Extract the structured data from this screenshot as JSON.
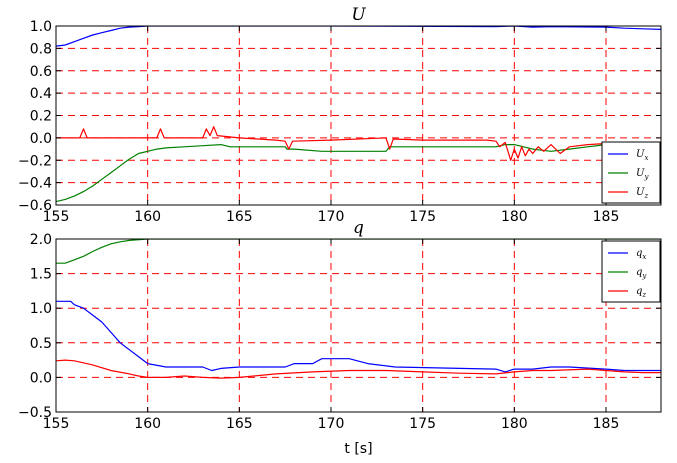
{
  "chart_data": [
    {
      "type": "line",
      "title": "U",
      "xlabel": "",
      "ylabel": "",
      "xlim": [
        155,
        188
      ],
      "ylim": [
        -0.6,
        1.0
      ],
      "xticks": [
        155,
        160,
        165,
        170,
        175,
        180,
        185
      ],
      "yticks": [
        -0.6,
        -0.4,
        -0.2,
        0.0,
        0.2,
        0.4,
        0.6,
        0.8,
        1.0
      ],
      "grid": true,
      "legend_position": "lower-right",
      "series": [
        {
          "name": "U_x",
          "label_base": "U",
          "label_sub": "x",
          "color": "#0000ff",
          "points": [
            [
              155,
              0.82
            ],
            [
              155.5,
              0.83
            ],
            [
              156,
              0.86
            ],
            [
              156.5,
              0.89
            ],
            [
              157,
              0.92
            ],
            [
              157.5,
              0.94
            ],
            [
              158,
              0.96
            ],
            [
              158.5,
              0.98
            ],
            [
              159,
              0.99
            ],
            [
              159.5,
              0.995
            ],
            [
              160,
              1.0
            ],
            [
              170,
              1.0
            ],
            [
              179,
              0.995
            ],
            [
              180,
              1.0
            ],
            [
              181,
              0.99
            ],
            [
              182,
              0.995
            ],
            [
              185,
              0.99
            ],
            [
              186,
              0.98
            ],
            [
              187,
              0.975
            ],
            [
              188,
              0.97
            ]
          ]
        },
        {
          "name": "U_y",
          "label_base": "U",
          "label_sub": "y",
          "color": "#008000",
          "points": [
            [
              155,
              -0.57
            ],
            [
              155.5,
              -0.55
            ],
            [
              156,
              -0.52
            ],
            [
              156.5,
              -0.48
            ],
            [
              157,
              -0.43
            ],
            [
              157.5,
              -0.37
            ],
            [
              158,
              -0.31
            ],
            [
              158.5,
              -0.25
            ],
            [
              159,
              -0.19
            ],
            [
              159.5,
              -0.14
            ],
            [
              160,
              -0.12
            ],
            [
              160.5,
              -0.1
            ],
            [
              161,
              -0.09
            ],
            [
              162,
              -0.08
            ],
            [
              163,
              -0.07
            ],
            [
              164,
              -0.06
            ],
            [
              164.5,
              -0.08
            ],
            [
              165,
              -0.08
            ],
            [
              167.5,
              -0.08
            ],
            [
              167.6,
              -0.1
            ],
            [
              168,
              -0.1
            ],
            [
              169.5,
              -0.12
            ],
            [
              173,
              -0.12
            ],
            [
              173.2,
              -0.08
            ],
            [
              179,
              -0.08
            ],
            [
              179.5,
              -0.06
            ],
            [
              180,
              -0.06
            ],
            [
              180.5,
              -0.08
            ],
            [
              181,
              -0.1
            ],
            [
              182,
              -0.12
            ],
            [
              183,
              -0.1
            ],
            [
              184,
              -0.08
            ],
            [
              185,
              -0.06
            ],
            [
              186,
              -0.06
            ],
            [
              187,
              -0.07
            ],
            [
              188,
              -0.07
            ]
          ]
        },
        {
          "name": "U_z",
          "label_base": "U",
          "label_sub": "z",
          "color": "#ff0000",
          "points": [
            [
              155,
              0.0
            ],
            [
              156,
              0.0
            ],
            [
              156.3,
              0.0
            ],
            [
              156.5,
              0.08
            ],
            [
              156.7,
              0.0
            ],
            [
              160.5,
              0.0
            ],
            [
              160.7,
              0.08
            ],
            [
              160.9,
              0.0
            ],
            [
              163,
              0.0
            ],
            [
              163.2,
              0.08
            ],
            [
              163.4,
              0.02
            ],
            [
              163.6,
              0.1
            ],
            [
              163.8,
              0.02
            ],
            [
              165,
              0.0
            ],
            [
              167,
              -0.02
            ],
            [
              167.5,
              -0.03
            ],
            [
              167.7,
              -0.1
            ],
            [
              167.9,
              -0.03
            ],
            [
              170,
              -0.02
            ],
            [
              173,
              0.0
            ],
            [
              173.2,
              -0.1
            ],
            [
              173.4,
              -0.01
            ],
            [
              175,
              -0.02
            ],
            [
              178.5,
              -0.02
            ],
            [
              179,
              -0.03
            ],
            [
              179.2,
              -0.08
            ],
            [
              179.5,
              -0.04
            ],
            [
              179.8,
              -0.2
            ],
            [
              180,
              -0.1
            ],
            [
              180.2,
              -0.18
            ],
            [
              180.4,
              -0.08
            ],
            [
              180.6,
              -0.16
            ],
            [
              180.8,
              -0.1
            ],
            [
              181,
              -0.14
            ],
            [
              181.3,
              -0.08
            ],
            [
              181.6,
              -0.12
            ],
            [
              182,
              -0.06
            ],
            [
              182.5,
              -0.14
            ],
            [
              183,
              -0.08
            ],
            [
              184,
              -0.06
            ],
            [
              185,
              -0.05
            ],
            [
              186,
              -0.05
            ],
            [
              187,
              -0.04
            ],
            [
              188,
              -0.04
            ]
          ]
        }
      ]
    },
    {
      "type": "line",
      "title": "q",
      "xlabel": "t [s]",
      "ylabel": "",
      "xlim": [
        155,
        188
      ],
      "ylim": [
        -0.5,
        2.0
      ],
      "xticks": [
        155,
        160,
        165,
        170,
        175,
        180,
        185
      ],
      "yticks": [
        -0.5,
        0.0,
        0.5,
        1.0,
        1.5,
        2.0
      ],
      "grid": true,
      "legend_position": "upper-right",
      "series": [
        {
          "name": "q_x",
          "label_base": "q",
          "label_sub": "x",
          "color": "#0000ff",
          "points": [
            [
              155,
              1.1
            ],
            [
              155.8,
              1.1
            ],
            [
              156,
              1.05
            ],
            [
              156.5,
              1.0
            ],
            [
              157,
              0.9
            ],
            [
              157.5,
              0.8
            ],
            [
              158,
              0.65
            ],
            [
              158.5,
              0.5
            ],
            [
              159,
              0.4
            ],
            [
              159.5,
              0.3
            ],
            [
              160,
              0.2
            ],
            [
              161,
              0.15
            ],
            [
              163,
              0.15
            ],
            [
              163.5,
              0.1
            ],
            [
              164,
              0.13
            ],
            [
              165,
              0.15
            ],
            [
              167.5,
              0.15
            ],
            [
              168,
              0.2
            ],
            [
              169,
              0.2
            ],
            [
              169.5,
              0.27
            ],
            [
              171,
              0.27
            ],
            [
              172,
              0.2
            ],
            [
              173.5,
              0.15
            ],
            [
              179,
              0.12
            ],
            [
              179.5,
              0.08
            ],
            [
              180,
              0.12
            ],
            [
              181,
              0.12
            ],
            [
              182,
              0.15
            ],
            [
              183,
              0.15
            ],
            [
              185,
              0.12
            ],
            [
              186,
              0.1
            ],
            [
              188,
              0.1
            ]
          ]
        },
        {
          "name": "q_y",
          "label_base": "q",
          "label_sub": "y",
          "color": "#008000",
          "points": [
            [
              155,
              1.65
            ],
            [
              155.5,
              1.65
            ],
            [
              156,
              1.7
            ],
            [
              156.5,
              1.75
            ],
            [
              157,
              1.82
            ],
            [
              157.5,
              1.88
            ],
            [
              158,
              1.93
            ],
            [
              158.5,
              1.96
            ],
            [
              159,
              1.98
            ],
            [
              160,
              2.0
            ],
            [
              188,
              2.0
            ]
          ]
        },
        {
          "name": "q_z",
          "label_base": "q",
          "label_sub": "z",
          "color": "#ff0000",
          "points": [
            [
              155,
              0.24
            ],
            [
              155.5,
              0.25
            ],
            [
              156,
              0.24
            ],
            [
              157,
              0.18
            ],
            [
              158,
              0.1
            ],
            [
              159,
              0.05
            ],
            [
              159.5,
              0.02
            ],
            [
              160,
              0.0
            ],
            [
              161,
              0.0
            ],
            [
              162,
              0.02
            ],
            [
              163,
              0.0
            ],
            [
              164,
              -0.01
            ],
            [
              165,
              0.0
            ],
            [
              167,
              0.05
            ],
            [
              169,
              0.08
            ],
            [
              171,
              0.1
            ],
            [
              173,
              0.1
            ],
            [
              175,
              0.08
            ],
            [
              177,
              0.06
            ],
            [
              179,
              0.05
            ],
            [
              180,
              0.08
            ],
            [
              181,
              0.1
            ],
            [
              182,
              0.1
            ],
            [
              184,
              0.12
            ],
            [
              185,
              0.1
            ],
            [
              186,
              0.08
            ],
            [
              187,
              0.07
            ],
            [
              188,
              0.07
            ]
          ]
        }
      ]
    }
  ]
}
